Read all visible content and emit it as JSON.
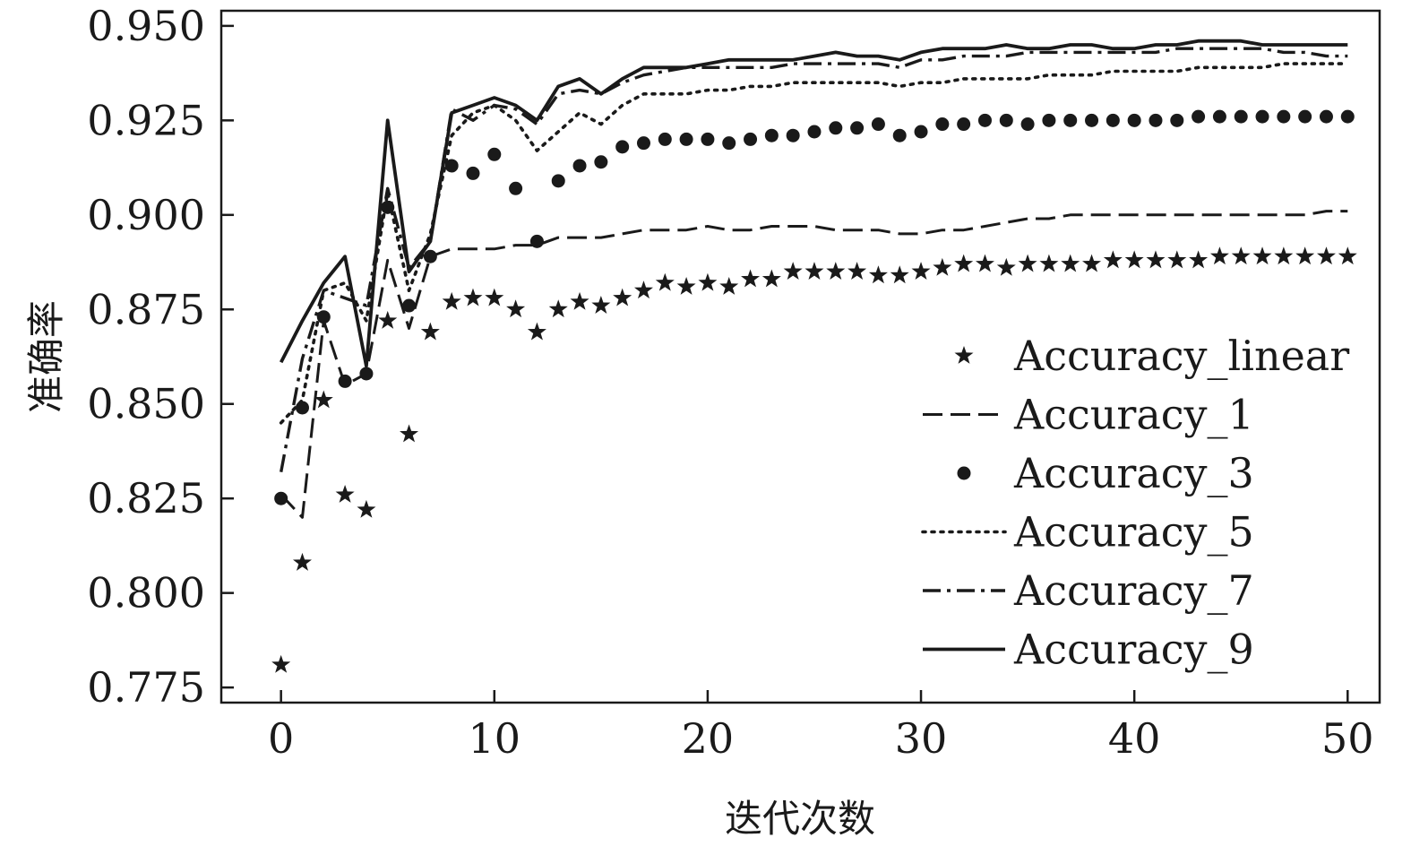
{
  "chart_data": {
    "type": "line",
    "xlabel": "迭代次数",
    "ylabel": "准确率",
    "xlim": [
      -2.8,
      51.5
    ],
    "ylim": [
      0.771,
      0.954
    ],
    "xticks": [
      0,
      10,
      20,
      30,
      40,
      50
    ],
    "xtick_labels": [
      "0",
      "10",
      "20",
      "30",
      "40",
      "50"
    ],
    "yticks": [
      0.775,
      0.8,
      0.825,
      0.85,
      0.875,
      0.9,
      0.925,
      0.95
    ],
    "ytick_labels": [
      "0.775",
      "0.800",
      "0.825",
      "0.850",
      "0.875",
      "0.900",
      "0.925",
      "0.950"
    ],
    "legend_position": "bottom-right",
    "grid": false,
    "x": [
      0,
      1,
      2,
      3,
      4,
      5,
      6,
      7,
      8,
      9,
      10,
      11,
      12,
      13,
      14,
      15,
      16,
      17,
      18,
      19,
      20,
      21,
      22,
      23,
      24,
      25,
      26,
      27,
      28,
      29,
      30,
      31,
      32,
      33,
      34,
      35,
      36,
      37,
      38,
      39,
      40,
      41,
      42,
      43,
      44,
      45,
      46,
      47,
      48,
      49,
      50
    ],
    "series": [
      {
        "name": "Accuracy_linear",
        "style": "star-markers",
        "values": [
          0.781,
          0.808,
          0.851,
          0.826,
          0.822,
          0.872,
          0.842,
          0.869,
          0.877,
          0.878,
          0.878,
          0.875,
          0.869,
          0.875,
          0.877,
          0.876,
          0.878,
          0.88,
          0.882,
          0.881,
          0.882,
          0.881,
          0.883,
          0.883,
          0.885,
          0.885,
          0.885,
          0.885,
          0.884,
          0.884,
          0.885,
          0.886,
          0.887,
          0.887,
          0.886,
          0.887,
          0.887,
          0.887,
          0.887,
          0.888,
          0.888,
          0.888,
          0.888,
          0.888,
          0.889,
          0.889,
          0.889,
          0.889,
          0.889,
          0.889,
          0.889
        ]
      },
      {
        "name": "Accuracy_1",
        "style": "dashed",
        "values": [
          0.826,
          0.82,
          0.872,
          0.855,
          0.858,
          0.888,
          0.87,
          0.889,
          0.891,
          0.891,
          0.891,
          0.892,
          0.892,
          0.894,
          0.894,
          0.894,
          0.895,
          0.896,
          0.896,
          0.896,
          0.897,
          0.896,
          0.896,
          0.897,
          0.897,
          0.897,
          0.896,
          0.896,
          0.896,
          0.895,
          0.895,
          0.896,
          0.896,
          0.897,
          0.898,
          0.899,
          0.899,
          0.9,
          0.9,
          0.9,
          0.9,
          0.9,
          0.9,
          0.9,
          0.9,
          0.9,
          0.9,
          0.9,
          0.9,
          0.901,
          0.901
        ]
      },
      {
        "name": "Accuracy_3",
        "style": "dot-markers",
        "values": [
          0.825,
          0.849,
          0.873,
          0.856,
          0.858,
          0.902,
          0.876,
          0.889,
          0.913,
          0.911,
          0.916,
          0.907,
          0.893,
          0.909,
          0.913,
          0.914,
          0.918,
          0.919,
          0.92,
          0.92,
          0.92,
          0.919,
          0.92,
          0.921,
          0.921,
          0.922,
          0.923,
          0.923,
          0.924,
          0.921,
          0.922,
          0.924,
          0.924,
          0.925,
          0.925,
          0.924,
          0.925,
          0.925,
          0.925,
          0.925,
          0.925,
          0.925,
          0.925,
          0.926,
          0.926,
          0.926,
          0.926,
          0.926,
          0.926,
          0.926,
          0.926
        ]
      },
      {
        "name": "Accuracy_5",
        "style": "dotted",
        "values": [
          0.845,
          0.851,
          0.88,
          0.882,
          0.872,
          0.906,
          0.88,
          0.895,
          0.921,
          0.927,
          0.929,
          0.925,
          0.917,
          0.922,
          0.927,
          0.924,
          0.929,
          0.932,
          0.932,
          0.932,
          0.933,
          0.933,
          0.934,
          0.934,
          0.935,
          0.935,
          0.935,
          0.935,
          0.935,
          0.934,
          0.935,
          0.935,
          0.936,
          0.936,
          0.936,
          0.936,
          0.937,
          0.937,
          0.937,
          0.938,
          0.938,
          0.938,
          0.938,
          0.939,
          0.939,
          0.939,
          0.939,
          0.94,
          0.94,
          0.94,
          0.94
        ]
      },
      {
        "name": "Accuracy_7",
        "style": "dash-dot",
        "values": [
          0.832,
          0.862,
          0.88,
          0.878,
          0.876,
          0.907,
          0.886,
          0.893,
          0.928,
          0.925,
          0.929,
          0.928,
          0.924,
          0.932,
          0.933,
          0.932,
          0.935,
          0.937,
          0.938,
          0.939,
          0.939,
          0.939,
          0.939,
          0.939,
          0.94,
          0.94,
          0.94,
          0.94,
          0.94,
          0.939,
          0.941,
          0.941,
          0.942,
          0.942,
          0.942,
          0.943,
          0.943,
          0.943,
          0.943,
          0.943,
          0.943,
          0.943,
          0.944,
          0.944,
          0.944,
          0.944,
          0.944,
          0.943,
          0.943,
          0.942,
          0.942
        ]
      },
      {
        "name": "Accuracy_9",
        "style": "solid",
        "values": [
          0.861,
          0.872,
          0.882,
          0.889,
          0.86,
          0.925,
          0.885,
          0.893,
          0.927,
          0.929,
          0.931,
          0.929,
          0.925,
          0.934,
          0.936,
          0.932,
          0.936,
          0.939,
          0.939,
          0.939,
          0.94,
          0.941,
          0.941,
          0.941,
          0.941,
          0.942,
          0.943,
          0.942,
          0.942,
          0.941,
          0.943,
          0.944,
          0.944,
          0.944,
          0.945,
          0.944,
          0.944,
          0.945,
          0.945,
          0.944,
          0.944,
          0.945,
          0.945,
          0.946,
          0.946,
          0.946,
          0.945,
          0.945,
          0.945,
          0.945,
          0.945
        ]
      }
    ]
  }
}
